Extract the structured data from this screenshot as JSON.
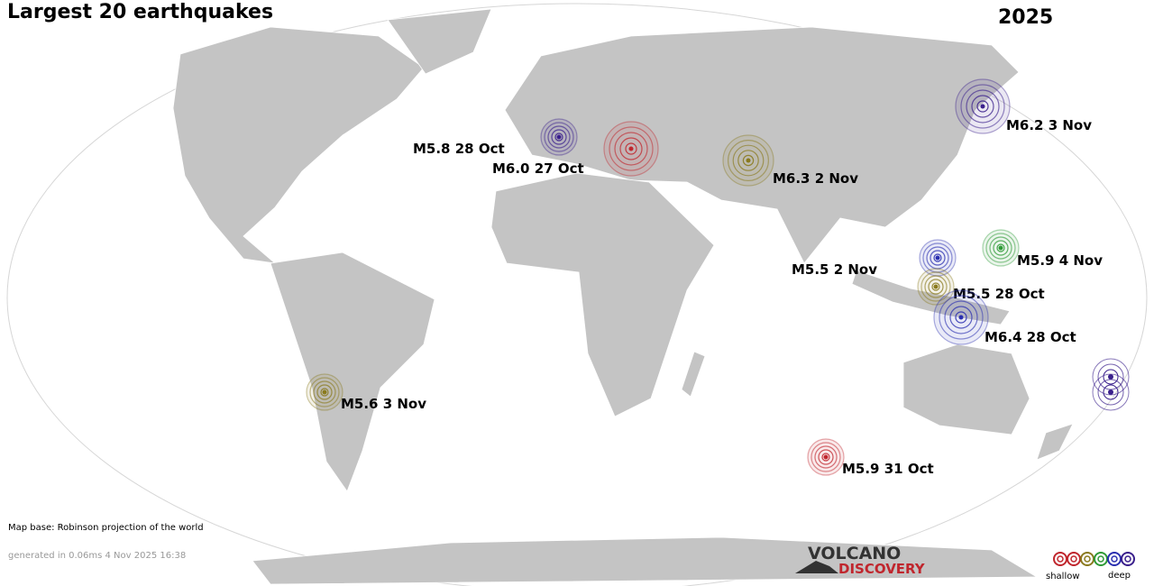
{
  "header": {
    "title": "Largest 20 earthquakes",
    "year": "2025"
  },
  "quakes": [
    {
      "label": "M5.8 28 Oct",
      "color": "#3a1f8c"
    },
    {
      "label": "M6.0 27 Oct",
      "color": "#c0262d"
    },
    {
      "label": "M6.3  2 Nov",
      "color": "#8a7a1e"
    },
    {
      "label": "M6.2  3 Nov",
      "color": "#3a1f8c"
    },
    {
      "label": "M5.5  2 Nov",
      "color": "#2a2fb0"
    },
    {
      "label": "M5.9  4 Nov",
      "color": "#2e9a36"
    },
    {
      "label": "M5.5 28 Oct",
      "color": "#8a7a1e"
    },
    {
      "label": "M6.4 28 Oct",
      "color": "#2a2fb0"
    },
    {
      "label": "M5.6  3 Nov",
      "color": "#8a7a1e"
    },
    {
      "label": "M5.9 31 Oct",
      "color": "#c0262d"
    }
  ],
  "footer": {
    "map_base": "Map base: Robinson projection of the world",
    "generated": "generated in 0.06ms  4 Nov 2025 16:38"
  },
  "logo": {
    "line1": "VOLCANO",
    "line2": "DISCOVERY"
  },
  "legend": {
    "shallow": "shallow",
    "deep": "deep"
  }
}
